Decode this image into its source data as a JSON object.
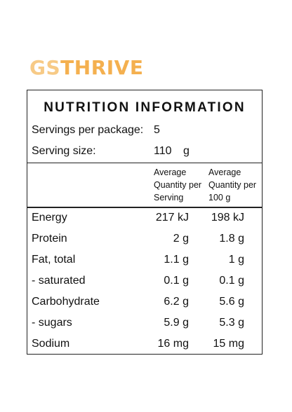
{
  "brand": {
    "part1": "GS",
    "part2": "THRIVE"
  },
  "colors": {
    "brand_light": "#f7ca86",
    "brand_dark": "#f4b04f",
    "border": "#222222"
  },
  "panel": {
    "title": "NUTRITION INFORMATION",
    "servings_label": "Servings per package:",
    "servings_value": "5",
    "serving_size_label": "Serving size:",
    "serving_size_value": "110",
    "serving_size_unit": "g",
    "col1_lines": [
      "Average",
      "Quantity per",
      "Serving"
    ],
    "col2_lines": [
      "Average",
      "Quantity per",
      "100 g"
    ],
    "rows": [
      {
        "label": "Energy",
        "per_serving": "217 kJ",
        "per_100g": "198 kJ"
      },
      {
        "label": "Protein",
        "per_serving": "2 g",
        "per_100g": "1.8 g"
      },
      {
        "label": "Fat, total",
        "per_serving": "1.1 g",
        "per_100g": "1 g"
      },
      {
        "label": "- saturated",
        "per_serving": "0.1 g",
        "per_100g": "0.1 g"
      },
      {
        "label": "Carbohydrate",
        "per_serving": "6.2 g",
        "per_100g": "5.6 g"
      },
      {
        "label": "- sugars",
        "per_serving": "5.9 g",
        "per_100g": "5.3 g"
      },
      {
        "label": "Sodium",
        "per_serving": "16 mg",
        "per_100g": "15 mg"
      }
    ]
  }
}
